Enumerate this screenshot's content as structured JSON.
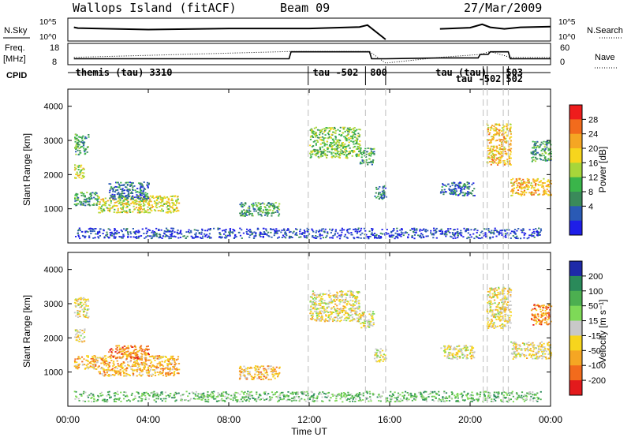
{
  "header": {
    "station": "Wallops Island (fitACF)",
    "beam": "Beam 09",
    "date": "27/Mar/2009"
  },
  "top_panels": {
    "nsky_label": "N.Sky",
    "nsky_ticks": [
      "10^5",
      "10^0"
    ],
    "nsearch_ticks": [
      "10^5",
      "10^0"
    ],
    "nsearch_label": "N.Search",
    "freq_label_1": "Freq.",
    "freq_label_2": "[MHz]",
    "freq_ticks": [
      "18",
      "8"
    ],
    "nave_ticks": [
      "60",
      "0"
    ],
    "nave_label": "Nave",
    "cpid_label": "CPID"
  },
  "cpid_labels": [
    {
      "text": "themis (tau) 3310",
      "t": 0.3
    },
    {
      "text": "tau -502",
      "t": 12.1
    },
    {
      "text": "800",
      "t": 14.95
    },
    {
      "text": "tau (tau)",
      "t": 18.2
    },
    {
      "text": "tau -502",
      "t": 19.2
    },
    {
      "text": "503",
      "t": 21.7
    },
    {
      "text": "502",
      "t": 21.7
    }
  ],
  "cpid_boundaries": [
    11.95,
    14.8,
    15.8,
    20.65,
    20.85,
    21.65,
    21.9
  ],
  "axes": {
    "y_label": "Slant Range [km]",
    "x_label": "Time UT",
    "x_ticks": [
      "00:00",
      "04:00",
      "08:00",
      "12:00",
      "16:00",
      "20:00",
      "00:00"
    ],
    "y_ticks": [
      "4000",
      "3000",
      "2000",
      "1000"
    ]
  },
  "colorbars": {
    "power": {
      "label": "Power [dB]",
      "ticks": [
        "28",
        "24",
        "20",
        "16",
        "12",
        "8",
        "4"
      ],
      "colors": [
        "#ee1c1c",
        "#f26b1c",
        "#f5a623",
        "#f7d51d",
        "#a7d63a",
        "#3ab54a",
        "#3a8a5a",
        "#2a5ab5",
        "#1e1ee8"
      ]
    },
    "velocity": {
      "label": "Velocity [m s⁻¹]",
      "ticks": [
        "200",
        "100",
        "50",
        "15",
        "-15",
        "-50",
        "-100",
        "-200"
      ],
      "colors": [
        "#1e2aa8",
        "#2a8a5a",
        "#4caf50",
        "#7ed957",
        "#c8c8c8",
        "#f7d51d",
        "#f5a623",
        "#f26b1c",
        "#e31a1c"
      ]
    }
  },
  "chart_data": [
    {
      "type": "line",
      "title": "N.Sky / N.Search",
      "xlim": [
        0,
        24
      ],
      "ylim_log10": [
        0,
        5
      ],
      "series": [
        {
          "name": "N.Sky",
          "x": [
            0.3,
            0.5,
            4,
            8,
            12,
            14.5,
            14.9,
            15.8
          ],
          "y_log10": [
            3.2,
            3.0,
            2.6,
            2.9,
            2.9,
            3.3,
            3.8,
            0
          ]
        },
        {
          "name": "N.Search",
          "x": [
            18.5,
            20,
            20.6,
            21,
            21.7,
            22.5,
            24
          ],
          "y_log10": [
            2.8,
            3.1,
            4.0,
            3.2,
            2.8,
            3.2,
            3.4
          ]
        }
      ]
    },
    {
      "type": "line",
      "title": "Freq / Nave",
      "xlim": [
        0,
        24
      ],
      "series": [
        {
          "name": "Freq.",
          "x": [
            0.3,
            11,
            11.1,
            15,
            15.1,
            15.8,
            18.5,
            20.4,
            20.5,
            20.9,
            21.0,
            21.9,
            22.0,
            24
          ],
          "y": [
            10.5,
            10.5,
            14.5,
            14.5,
            10.5,
            10.5,
            11,
            11,
            13,
            13,
            14.5,
            14.5,
            10.5,
            10.5
          ]
        },
        {
          "name": "Nave",
          "x": [
            0.3,
            11,
            15,
            15.8,
            18.5,
            20.5,
            21,
            22,
            24
          ],
          "y": [
            20,
            40,
            40,
            0,
            20,
            30,
            40,
            20,
            20
          ]
        }
      ]
    },
    {
      "type": "heatmap",
      "title": "Power",
      "xlim": [
        0,
        24
      ],
      "ylim": [
        0,
        4500
      ],
      "xlabel": "Time UT",
      "ylabel": "Slant Range [km]",
      "blobs": [
        {
          "t0": 0.3,
          "t1": 1.0,
          "r0": 2600,
          "r1": 3200,
          "level": 3
        },
        {
          "t0": 0.3,
          "t1": 0.8,
          "r0": 1900,
          "r1": 2300,
          "level": 5
        },
        {
          "t0": 0.3,
          "t1": 1.5,
          "r0": 1100,
          "r1": 1500,
          "level": 3
        },
        {
          "t0": 1.5,
          "t1": 5.5,
          "r0": 900,
          "r1": 1400,
          "level": 5
        },
        {
          "t0": 2.0,
          "t1": 4.0,
          "r0": 1300,
          "r1": 1800,
          "level": 2
        },
        {
          "t0": 8.5,
          "t1": 10.5,
          "r0": 800,
          "r1": 1200,
          "level": 3
        },
        {
          "t0": 12.0,
          "t1": 14.5,
          "r0": 2500,
          "r1": 3400,
          "level": 4
        },
        {
          "t0": 14.5,
          "t1": 15.2,
          "r0": 2300,
          "r1": 2800,
          "level": 3
        },
        {
          "t0": 15.2,
          "t1": 15.8,
          "r0": 1300,
          "r1": 1700,
          "level": 2
        },
        {
          "t0": 18.5,
          "t1": 20.2,
          "r0": 1400,
          "r1": 1800,
          "level": 2
        },
        {
          "t0": 20.8,
          "t1": 22.0,
          "r0": 2300,
          "r1": 3500,
          "level": 6
        },
        {
          "t0": 22.0,
          "t1": 24.0,
          "r0": 1400,
          "r1": 1900,
          "level": 6
        },
        {
          "t0": 23.0,
          "t1": 24.0,
          "r0": 2400,
          "r1": 3000,
          "level": 3
        },
        {
          "t0": 0.3,
          "t1": 23.5,
          "r0": 150,
          "r1": 450,
          "level": 1
        }
      ]
    },
    {
      "type": "heatmap",
      "title": "Velocity",
      "xlim": [
        0,
        24
      ],
      "ylim": [
        0,
        4500
      ],
      "xlabel": "Time UT",
      "ylabel": "Slant Range [km]",
      "blobs": [
        {
          "t0": 0.3,
          "t1": 1.0,
          "r0": 2600,
          "r1": 3200,
          "level": 4
        },
        {
          "t0": 0.3,
          "t1": 0.8,
          "r0": 1900,
          "r1": 2300,
          "level": 4
        },
        {
          "t0": 0.3,
          "t1": 1.5,
          "r0": 1100,
          "r1": 1500,
          "level": 3
        },
        {
          "t0": 1.5,
          "t1": 5.5,
          "r0": 900,
          "r1": 1500,
          "level": 3
        },
        {
          "t0": 2.0,
          "t1": 4.0,
          "r0": 1400,
          "r1": 1800,
          "level": 2
        },
        {
          "t0": 8.5,
          "t1": 10.5,
          "r0": 800,
          "r1": 1200,
          "level": 3
        },
        {
          "t0": 12.0,
          "t1": 14.5,
          "r0": 2500,
          "r1": 3400,
          "level": 4
        },
        {
          "t0": 14.5,
          "t1": 15.2,
          "r0": 2300,
          "r1": 2800,
          "level": 4
        },
        {
          "t0": 15.2,
          "t1": 15.8,
          "r0": 1300,
          "r1": 1700,
          "level": 4
        },
        {
          "t0": 18.5,
          "t1": 20.2,
          "r0": 1400,
          "r1": 1800,
          "level": 4
        },
        {
          "t0": 20.8,
          "t1": 22.0,
          "r0": 2300,
          "r1": 3500,
          "level": 4
        },
        {
          "t0": 22.0,
          "t1": 24.0,
          "r0": 1400,
          "r1": 1900,
          "level": 4
        },
        {
          "t0": 23.0,
          "t1": 24.0,
          "r0": 2400,
          "r1": 3000,
          "level": 2
        },
        {
          "t0": 0.3,
          "t1": 23.5,
          "r0": 150,
          "r1": 450,
          "level": 6
        }
      ]
    }
  ]
}
